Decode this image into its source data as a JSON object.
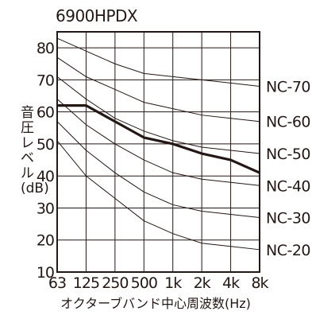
{
  "chart_data": {
    "type": "line",
    "title": "6900HPDX",
    "xlabel": "オクターブバンド中心周波数(Hz)",
    "ylabel_chars": [
      "音",
      "圧",
      "レ",
      "ベ",
      "ル"
    ],
    "ylabel_unit": "(dB)",
    "x_categories": [
      "63",
      "125",
      "250",
      "500",
      "1k",
      "2k",
      "4k",
      "8k"
    ],
    "yticks": [
      10,
      20,
      30,
      40,
      50,
      60,
      70,
      80
    ],
    "ylim": [
      10,
      85
    ],
    "grid": true,
    "series": [
      {
        "name": "6900HPDX",
        "values": [
          62,
          62,
          57,
          52,
          50,
          47,
          45,
          41
        ]
      }
    ],
    "nc_curves": [
      {
        "name": "NC-70",
        "values": [
          83,
          79,
          75,
          72,
          71,
          70,
          69,
          68
        ]
      },
      {
        "name": "NC-60",
        "values": [
          77,
          71,
          67,
          63,
          61,
          59,
          58,
          57
        ]
      },
      {
        "name": "NC-50",
        "values": [
          71,
          64,
          58,
          54,
          51,
          49,
          48,
          47
        ]
      },
      {
        "name": "NC-40",
        "values": [
          64,
          56,
          50,
          45,
          41,
          39,
          38,
          37
        ]
      },
      {
        "name": "NC-30",
        "values": [
          57,
          48,
          41,
          35,
          31,
          29,
          28,
          27
        ]
      },
      {
        "name": "NC-20",
        "values": [
          51,
          40,
          33,
          26,
          22,
          19,
          18,
          17
        ]
      }
    ],
    "colors": {
      "frame": "#231815",
      "grid": "#231815",
      "data": "#231815"
    }
  }
}
